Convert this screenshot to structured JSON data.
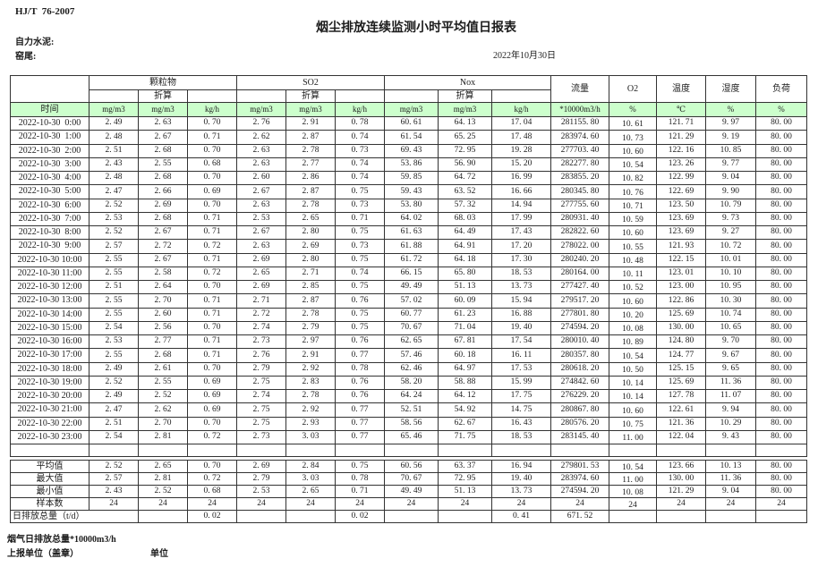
{
  "header": {
    "doc_code": "HJ/T  76-2007",
    "title": "烟尘排放连续监测小时平均值日报表",
    "company": "自力水泥:",
    "location": "窑尾:",
    "date": "2022年10月30日"
  },
  "table": {
    "time_label": "时间",
    "groups": [
      {
        "label": "颗粒物"
      },
      {
        "label": "SO2"
      },
      {
        "label": "Nox"
      }
    ],
    "subheader": "折算",
    "flow_label": "流量",
    "o2_label": "O2",
    "temp_label": "温度",
    "humidity_label": "湿度",
    "load_label": "负荷",
    "units": [
      "mg/m3",
      "mg/m3",
      "kg/h",
      "mg/m3",
      "mg/m3",
      "kg/h",
      "mg/m3",
      "mg/m3",
      "kg/h",
      "*10000m3/h",
      "%",
      "℃",
      "%",
      "%"
    ],
    "rows": [
      {
        "time": "2022-10-30  0:00",
        "values": [
          "2.49",
          "2.63",
          "0.70",
          "2.76",
          "2.91",
          "0.78",
          "60.61",
          "64.13",
          "17.04",
          "281155.80",
          "10.61",
          "121.71",
          "9.97",
          "80.00"
        ]
      },
      {
        "time": "2022-10-30  1:00",
        "values": [
          "2.48",
          "2.67",
          "0.71",
          "2.62",
          "2.87",
          "0.74",
          "61.54",
          "65.25",
          "17.48",
          "283974.60",
          "10.73",
          "121.29",
          "9.19",
          "80.00"
        ]
      },
      {
        "time": "2022-10-30  2:00",
        "values": [
          "2.51",
          "2.68",
          "0.70",
          "2.63",
          "2.78",
          "0.73",
          "69.43",
          "72.95",
          "19.28",
          "277703.40",
          "10.60",
          "122.16",
          "10.85",
          "80.00"
        ]
      },
      {
        "time": "2022-10-30  3:00",
        "values": [
          "2.43",
          "2.55",
          "0.68",
          "2.63",
          "2.77",
          "0.74",
          "53.86",
          "56.90",
          "15.20",
          "282277.80",
          "10.54",
          "123.26",
          "9.77",
          "80.00"
        ]
      },
      {
        "time": "2022-10-30  4:00",
        "values": [
          "2.48",
          "2.68",
          "0.70",
          "2.60",
          "2.86",
          "0.74",
          "59.85",
          "64.72",
          "16.99",
          "283855.20",
          "10.82",
          "122.99",
          "9.04",
          "80.00"
        ]
      },
      {
        "time": "2022-10-30  5:00",
        "values": [
          "2.47",
          "2.66",
          "0.69",
          "2.67",
          "2.87",
          "0.75",
          "59.43",
          "63.52",
          "16.66",
          "280345.80",
          "10.76",
          "122.69",
          "9.90",
          "80.00"
        ]
      },
      {
        "time": "2022-10-30  6:00",
        "values": [
          "2.52",
          "2.69",
          "0.70",
          "2.63",
          "2.78",
          "0.73",
          "53.80",
          "57.32",
          "14.94",
          "277755.60",
          "10.71",
          "123.50",
          "10.79",
          "80.00"
        ]
      },
      {
        "time": "2022-10-30  7:00",
        "values": [
          "2.53",
          "2.68",
          "0.71",
          "2.53",
          "2.65",
          "0.71",
          "64.02",
          "68.03",
          "17.99",
          "280931.40",
          "10.59",
          "123.69",
          "9.73",
          "80.00"
        ]
      },
      {
        "time": "2022-10-30  8:00",
        "values": [
          "2.52",
          "2.67",
          "0.71",
          "2.67",
          "2.80",
          "0.75",
          "61.63",
          "64.49",
          "17.43",
          "282822.60",
          "10.60",
          "123.69",
          "9.27",
          "80.00"
        ]
      },
      {
        "time": "2022-10-30  9:00",
        "values": [
          "2.57",
          "2.72",
          "0.72",
          "2.63",
          "2.69",
          "0.73",
          "61.88",
          "64.91",
          "17.20",
          "278022.00",
          "10.55",
          "121.93",
          "10.72",
          "80.00"
        ]
      },
      {
        "time": "2022-10-30 10:00",
        "values": [
          "2.55",
          "2.67",
          "0.71",
          "2.69",
          "2.80",
          "0.75",
          "61.72",
          "64.18",
          "17.30",
          "280240.20",
          "10.48",
          "122.15",
          "10.01",
          "80.00"
        ]
      },
      {
        "time": "2022-10-30 11:00",
        "values": [
          "2.55",
          "2.58",
          "0.72",
          "2.65",
          "2.71",
          "0.74",
          "66.15",
          "65.80",
          "18.53",
          "280164.00",
          "10.11",
          "123.01",
          "10.10",
          "80.00"
        ]
      },
      {
        "time": "2022-10-30 12:00",
        "values": [
          "2.51",
          "2.64",
          "0.70",
          "2.69",
          "2.85",
          "0.75",
          "49.49",
          "51.13",
          "13.73",
          "277427.40",
          "10.52",
          "123.00",
          "10.95",
          "80.00"
        ]
      },
      {
        "time": "2022-10-30 13:00",
        "values": [
          "2.55",
          "2.70",
          "0.71",
          "2.71",
          "2.87",
          "0.76",
          "57.02",
          "60.09",
          "15.94",
          "279517.20",
          "10.60",
          "122.86",
          "10.30",
          "80.00"
        ]
      },
      {
        "time": "2022-10-30 14:00",
        "values": [
          "2.55",
          "2.60",
          "0.71",
          "2.72",
          "2.78",
          "0.75",
          "60.77",
          "61.23",
          "16.88",
          "277801.80",
          "10.20",
          "125.69",
          "10.74",
          "80.00"
        ]
      },
      {
        "time": "2022-10-30 15:00",
        "values": [
          "2.54",
          "2.56",
          "0.70",
          "2.74",
          "2.79",
          "0.75",
          "70.67",
          "71.04",
          "19.40",
          "274594.20",
          "10.08",
          "130.00",
          "10.65",
          "80.00"
        ]
      },
      {
        "time": "2022-10-30 16:00",
        "values": [
          "2.53",
          "2.77",
          "0.71",
          "2.73",
          "2.97",
          "0.76",
          "62.65",
          "67.81",
          "17.54",
          "280010.40",
          "10.89",
          "124.80",
          "9.70",
          "80.00"
        ]
      },
      {
        "time": "2022-10-30 17:00",
        "values": [
          "2.55",
          "2.68",
          "0.71",
          "2.76",
          "2.91",
          "0.77",
          "57.46",
          "60.18",
          "16.11",
          "280357.80",
          "10.54",
          "124.77",
          "9.67",
          "80.00"
        ]
      },
      {
        "time": "2022-10-30 18:00",
        "values": [
          "2.49",
          "2.61",
          "0.70",
          "2.79",
          "2.92",
          "0.78",
          "62.46",
          "64.97",
          "17.53",
          "280618.20",
          "10.50",
          "125.15",
          "9.65",
          "80.00"
        ]
      },
      {
        "time": "2022-10-30 19:00",
        "values": [
          "2.52",
          "2.55",
          "0.69",
          "2.75",
          "2.83",
          "0.76",
          "58.20",
          "58.88",
          "15.99",
          "274842.60",
          "10.14",
          "125.69",
          "11.36",
          "80.00"
        ]
      },
      {
        "time": "2022-10-30 20:00",
        "values": [
          "2.49",
          "2.52",
          "0.69",
          "2.74",
          "2.78",
          "0.76",
          "64.24",
          "64.12",
          "17.75",
          "276229.20",
          "10.14",
          "127.78",
          "11.07",
          "80.00"
        ]
      },
      {
        "time": "2022-10-30 21:00",
        "values": [
          "2.47",
          "2.62",
          "0.69",
          "2.75",
          "2.92",
          "0.77",
          "52.51",
          "54.92",
          "14.75",
          "280867.80",
          "10.60",
          "122.61",
          "9.94",
          "80.00"
        ]
      },
      {
        "time": "2022-10-30 22:00",
        "values": [
          "2.51",
          "2.70",
          "0.70",
          "2.75",
          "2.93",
          "0.77",
          "58.56",
          "62.67",
          "16.43",
          "280576.20",
          "10.75",
          "121.36",
          "10.29",
          "80.00"
        ]
      },
      {
        "time": "2022-10-30 23:00",
        "values": [
          "2.54",
          "2.81",
          "0.72",
          "2.73",
          "3.03",
          "0.77",
          "65.46",
          "71.75",
          "18.53",
          "283145.40",
          "11.00",
          "122.04",
          "9.43",
          "80.00"
        ]
      }
    ],
    "summary": [
      {
        "label": "平均值",
        "values": [
          "2.52",
          "2.65",
          "0.70",
          "2.69",
          "2.84",
          "0.75",
          "60.56",
          "63.37",
          "16.94",
          "279801.53",
          "10.54",
          "123.66",
          "10.13",
          "80.00"
        ]
      },
      {
        "label": "最大值",
        "values": [
          "2.57",
          "2.81",
          "0.72",
          "2.79",
          "3.03",
          "0.78",
          "70.67",
          "72.95",
          "19.40",
          "283974.60",
          "11.00",
          "130.00",
          "11.36",
          "80.00"
        ]
      },
      {
        "label": "最小值",
        "values": [
          "2.43",
          "2.52",
          "0.68",
          "2.53",
          "2.65",
          "0.71",
          "49.49",
          "51.13",
          "13.73",
          "274594.20",
          "10.08",
          "121.29",
          "9.04",
          "80.00"
        ]
      },
      {
        "label": "样本数",
        "values": [
          "24",
          "24",
          "24",
          "24",
          "24",
          "24",
          "24",
          "24",
          "24",
          "24",
          "24",
          "24",
          "24",
          "24"
        ]
      }
    ],
    "daily_total": {
      "label": "日排放总量（t/d）",
      "values": [
        "",
        "0.02",
        "",
        "",
        "0.02",
        "",
        "",
        "0.41",
        "671.52",
        "",
        "",
        "",
        ""
      ]
    }
  },
  "footer": {
    "line1": "烟气日排放总量*10000m3/h",
    "line2_left": "上报单位（盖章）",
    "line2_right": "单位"
  },
  "colors": {
    "header_green": "#ccffcc"
  }
}
